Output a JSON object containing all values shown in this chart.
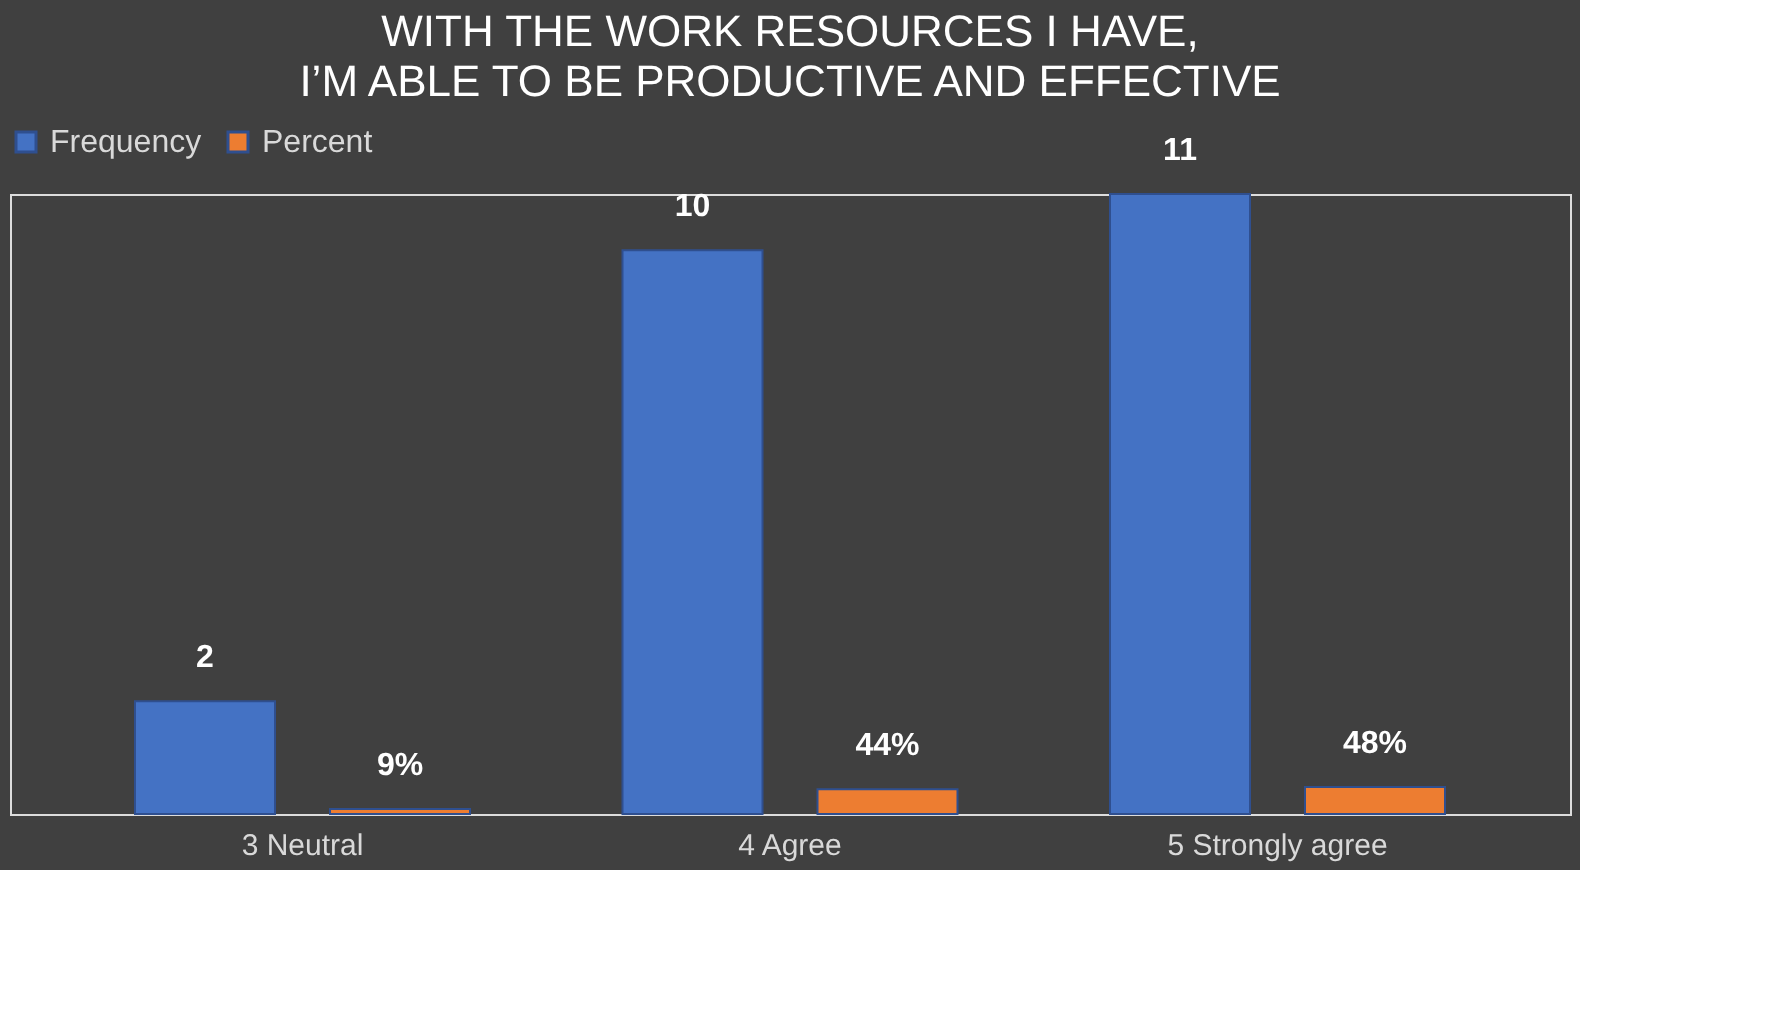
{
  "chart_data": {
    "type": "bar",
    "title": "WITH THE WORK RESOURCES I HAVE, I’M ABLE TO BE PRODUCTIVE AND EFFECTIVE",
    "categories": [
      "3 Neutral",
      "4 Agree",
      "5 Strongly agree"
    ],
    "series": [
      {
        "name": "Frequency",
        "color": "#4472c4",
        "values": [
          2,
          10,
          11
        ],
        "value_labels": [
          "2",
          "10",
          "11"
        ]
      },
      {
        "name": "Percent",
        "color": "#ed7d31",
        "values": [
          0.09,
          0.44,
          0.48
        ],
        "value_labels": [
          "9%",
          "44%",
          "48%"
        ]
      }
    ],
    "legend": "top",
    "grid": false
  }
}
